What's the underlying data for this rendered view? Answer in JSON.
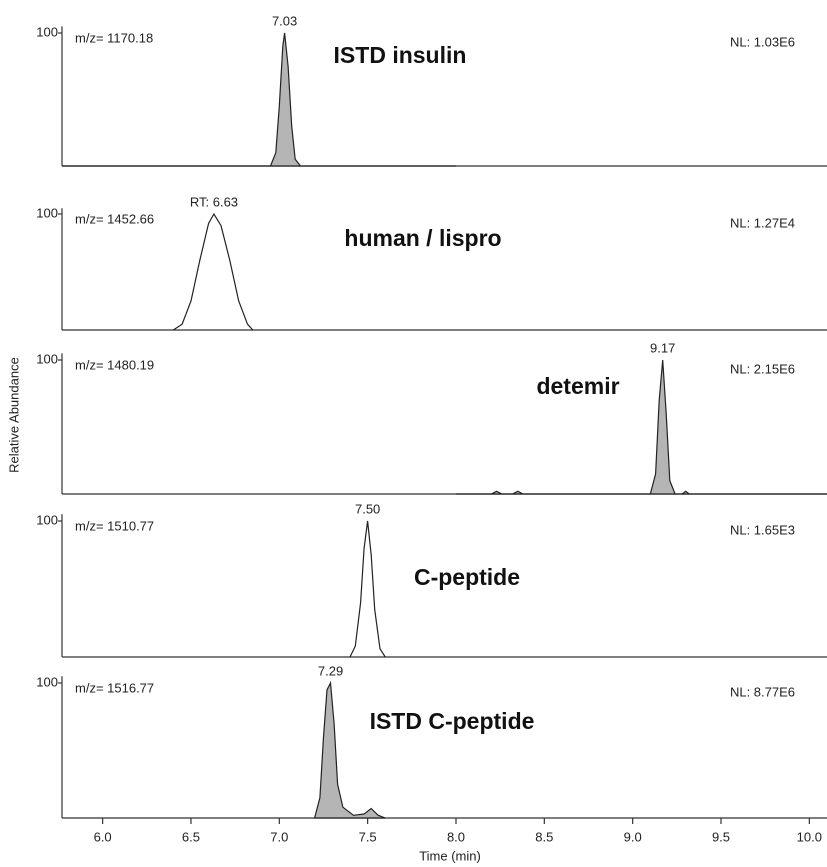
{
  "chart_data": [
    {
      "type": "line",
      "mz_label": "m/z= 1170.18",
      "nl_label": "NL: 1.03E6",
      "title": "ISTD insulin",
      "peak_label": "7.03",
      "x": [
        5.77,
        6.95,
        6.98,
        7.0,
        7.02,
        7.03,
        7.05,
        7.07,
        7.09,
        7.12,
        8.0
      ],
      "values": [
        0,
        0,
        10,
        45,
        90,
        100,
        75,
        30,
        5,
        0,
        0
      ],
      "fill": "#b5b5b5",
      "color": "#222222",
      "xlim": [
        5.77,
        10.1
      ],
      "ylim": [
        0,
        105
      ],
      "yticks": [
        100
      ]
    },
    {
      "type": "line",
      "mz_label": "m/z= 1452.66",
      "nl_label": "NL: 1.27E4",
      "title": "human / lispro",
      "peak_label": "RT: 6.63",
      "x": [
        6.4,
        6.45,
        6.5,
        6.55,
        6.6,
        6.63,
        6.67,
        6.72,
        6.77,
        6.82,
        6.85
      ],
      "values": [
        0,
        5,
        25,
        60,
        92,
        100,
        90,
        60,
        25,
        5,
        0
      ],
      "fill": "none",
      "color": "#222222",
      "xlim": [
        5.77,
        10.1
      ],
      "ylim": [
        0,
        105
      ],
      "yticks": [
        100
      ]
    },
    {
      "type": "line",
      "mz_label": "m/z= 1480.19",
      "nl_label": "NL: 2.15E6",
      "title": "detemir",
      "peak_label": "9.17",
      "ylabel": "Relative  Abundance",
      "x": [
        8.0,
        8.2,
        8.23,
        8.26,
        8.32,
        8.35,
        8.38,
        9.1,
        9.13,
        9.15,
        9.17,
        9.19,
        9.21,
        9.24,
        9.28,
        9.3,
        9.32,
        10.1
      ],
      "values": [
        0,
        0,
        2,
        0,
        0,
        2,
        0,
        0,
        15,
        70,
        100,
        60,
        10,
        0,
        0,
        2,
        0,
        0
      ],
      "fill": "#b5b5b5",
      "color": "#222222",
      "xlim": [
        5.77,
        10.1
      ],
      "ylim": [
        0,
        105
      ],
      "yticks": [
        100
      ]
    },
    {
      "type": "line",
      "mz_label": "m/z= 1510.77",
      "nl_label": "NL: 1.65E3",
      "title": "C-peptide",
      "peak_label": "7.50",
      "x": [
        7.4,
        7.43,
        7.46,
        7.48,
        7.5,
        7.52,
        7.54,
        7.57,
        7.6
      ],
      "values": [
        0,
        8,
        40,
        80,
        100,
        75,
        35,
        6,
        0
      ],
      "fill": "none",
      "color": "#222222",
      "xlim": [
        5.77,
        10.1
      ],
      "ylim": [
        0,
        105
      ],
      "yticks": [
        100
      ]
    },
    {
      "type": "line",
      "mz_label": "m/z= 1516.77",
      "nl_label": "NL: 8.77E6",
      "title": "ISTD C-peptide",
      "peak_label": "7.29",
      "x": [
        7.2,
        7.23,
        7.25,
        7.27,
        7.29,
        7.31,
        7.33,
        7.36,
        7.42,
        7.48,
        7.52,
        7.56,
        7.6
      ],
      "values": [
        0,
        15,
        60,
        95,
        100,
        70,
        25,
        8,
        2,
        3,
        7,
        2,
        0
      ],
      "fill": "#b5b5b5",
      "color": "#222222",
      "xlim": [
        5.77,
        10.1
      ],
      "ylim": [
        0,
        105
      ],
      "yticks": [
        100
      ],
      "xlabel": "Time (min)",
      "xticks": [
        {
          "value": 6,
          "label": "6.0"
        },
        {
          "value": 6.5,
          "label": "6.5"
        },
        {
          "value": 7,
          "label": "7.0"
        },
        {
          "value": 7.5,
          "label": "7.5"
        },
        {
          "value": 8,
          "label": "8.0"
        },
        {
          "value": 8.5,
          "label": "8.5"
        },
        {
          "value": 9,
          "label": "9.0"
        },
        {
          "value": 9.5,
          "label": "9.5"
        },
        {
          "value": 10,
          "label": "10.0"
        }
      ]
    }
  ]
}
